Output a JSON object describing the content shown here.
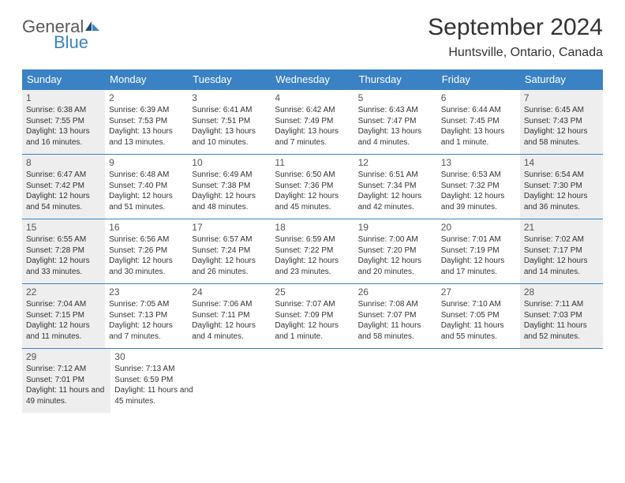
{
  "logo": {
    "line1": "General",
    "line2": "Blue"
  },
  "title": "September 2024",
  "location": "Huntsville, Ontario, Canada",
  "day_names": [
    "Sunday",
    "Monday",
    "Tuesday",
    "Wednesday",
    "Thursday",
    "Friday",
    "Saturday"
  ],
  "colors": {
    "header_bg": "#3b82c4",
    "header_text": "#ffffff",
    "shaded_cell": "#eeeeee",
    "border": "#3b82c4",
    "logo_gray": "#5a5a5a",
    "logo_blue": "#3b82c4"
  },
  "weeks": [
    [
      {
        "num": "1",
        "sunrise": "Sunrise: 6:38 AM",
        "sunset": "Sunset: 7:55 PM",
        "daylight": "Daylight: 13 hours and 16 minutes.",
        "shaded": true
      },
      {
        "num": "2",
        "sunrise": "Sunrise: 6:39 AM",
        "sunset": "Sunset: 7:53 PM",
        "daylight": "Daylight: 13 hours and 13 minutes.",
        "shaded": false
      },
      {
        "num": "3",
        "sunrise": "Sunrise: 6:41 AM",
        "sunset": "Sunset: 7:51 PM",
        "daylight": "Daylight: 13 hours and 10 minutes.",
        "shaded": false
      },
      {
        "num": "4",
        "sunrise": "Sunrise: 6:42 AM",
        "sunset": "Sunset: 7:49 PM",
        "daylight": "Daylight: 13 hours and 7 minutes.",
        "shaded": false
      },
      {
        "num": "5",
        "sunrise": "Sunrise: 6:43 AM",
        "sunset": "Sunset: 7:47 PM",
        "daylight": "Daylight: 13 hours and 4 minutes.",
        "shaded": false
      },
      {
        "num": "6",
        "sunrise": "Sunrise: 6:44 AM",
        "sunset": "Sunset: 7:45 PM",
        "daylight": "Daylight: 13 hours and 1 minute.",
        "shaded": false
      },
      {
        "num": "7",
        "sunrise": "Sunrise: 6:45 AM",
        "sunset": "Sunset: 7:43 PM",
        "daylight": "Daylight: 12 hours and 58 minutes.",
        "shaded": true
      }
    ],
    [
      {
        "num": "8",
        "sunrise": "Sunrise: 6:47 AM",
        "sunset": "Sunset: 7:42 PM",
        "daylight": "Daylight: 12 hours and 54 minutes.",
        "shaded": true
      },
      {
        "num": "9",
        "sunrise": "Sunrise: 6:48 AM",
        "sunset": "Sunset: 7:40 PM",
        "daylight": "Daylight: 12 hours and 51 minutes.",
        "shaded": false
      },
      {
        "num": "10",
        "sunrise": "Sunrise: 6:49 AM",
        "sunset": "Sunset: 7:38 PM",
        "daylight": "Daylight: 12 hours and 48 minutes.",
        "shaded": false
      },
      {
        "num": "11",
        "sunrise": "Sunrise: 6:50 AM",
        "sunset": "Sunset: 7:36 PM",
        "daylight": "Daylight: 12 hours and 45 minutes.",
        "shaded": false
      },
      {
        "num": "12",
        "sunrise": "Sunrise: 6:51 AM",
        "sunset": "Sunset: 7:34 PM",
        "daylight": "Daylight: 12 hours and 42 minutes.",
        "shaded": false
      },
      {
        "num": "13",
        "sunrise": "Sunrise: 6:53 AM",
        "sunset": "Sunset: 7:32 PM",
        "daylight": "Daylight: 12 hours and 39 minutes.",
        "shaded": false
      },
      {
        "num": "14",
        "sunrise": "Sunrise: 6:54 AM",
        "sunset": "Sunset: 7:30 PM",
        "daylight": "Daylight: 12 hours and 36 minutes.",
        "shaded": true
      }
    ],
    [
      {
        "num": "15",
        "sunrise": "Sunrise: 6:55 AM",
        "sunset": "Sunset: 7:28 PM",
        "daylight": "Daylight: 12 hours and 33 minutes.",
        "shaded": true
      },
      {
        "num": "16",
        "sunrise": "Sunrise: 6:56 AM",
        "sunset": "Sunset: 7:26 PM",
        "daylight": "Daylight: 12 hours and 30 minutes.",
        "shaded": false
      },
      {
        "num": "17",
        "sunrise": "Sunrise: 6:57 AM",
        "sunset": "Sunset: 7:24 PM",
        "daylight": "Daylight: 12 hours and 26 minutes.",
        "shaded": false
      },
      {
        "num": "18",
        "sunrise": "Sunrise: 6:59 AM",
        "sunset": "Sunset: 7:22 PM",
        "daylight": "Daylight: 12 hours and 23 minutes.",
        "shaded": false
      },
      {
        "num": "19",
        "sunrise": "Sunrise: 7:00 AM",
        "sunset": "Sunset: 7:20 PM",
        "daylight": "Daylight: 12 hours and 20 minutes.",
        "shaded": false
      },
      {
        "num": "20",
        "sunrise": "Sunrise: 7:01 AM",
        "sunset": "Sunset: 7:19 PM",
        "daylight": "Daylight: 12 hours and 17 minutes.",
        "shaded": false
      },
      {
        "num": "21",
        "sunrise": "Sunrise: 7:02 AM",
        "sunset": "Sunset: 7:17 PM",
        "daylight": "Daylight: 12 hours and 14 minutes.",
        "shaded": true
      }
    ],
    [
      {
        "num": "22",
        "sunrise": "Sunrise: 7:04 AM",
        "sunset": "Sunset: 7:15 PM",
        "daylight": "Daylight: 12 hours and 11 minutes.",
        "shaded": true
      },
      {
        "num": "23",
        "sunrise": "Sunrise: 7:05 AM",
        "sunset": "Sunset: 7:13 PM",
        "daylight": "Daylight: 12 hours and 7 minutes.",
        "shaded": false
      },
      {
        "num": "24",
        "sunrise": "Sunrise: 7:06 AM",
        "sunset": "Sunset: 7:11 PM",
        "daylight": "Daylight: 12 hours and 4 minutes.",
        "shaded": false
      },
      {
        "num": "25",
        "sunrise": "Sunrise: 7:07 AM",
        "sunset": "Sunset: 7:09 PM",
        "daylight": "Daylight: 12 hours and 1 minute.",
        "shaded": false
      },
      {
        "num": "26",
        "sunrise": "Sunrise: 7:08 AM",
        "sunset": "Sunset: 7:07 PM",
        "daylight": "Daylight: 11 hours and 58 minutes.",
        "shaded": false
      },
      {
        "num": "27",
        "sunrise": "Sunrise: 7:10 AM",
        "sunset": "Sunset: 7:05 PM",
        "daylight": "Daylight: 11 hours and 55 minutes.",
        "shaded": false
      },
      {
        "num": "28",
        "sunrise": "Sunrise: 7:11 AM",
        "sunset": "Sunset: 7:03 PM",
        "daylight": "Daylight: 11 hours and 52 minutes.",
        "shaded": true
      }
    ],
    [
      {
        "num": "29",
        "sunrise": "Sunrise: 7:12 AM",
        "sunset": "Sunset: 7:01 PM",
        "daylight": "Daylight: 11 hours and 49 minutes.",
        "shaded": true
      },
      {
        "num": "30",
        "sunrise": "Sunrise: 7:13 AM",
        "sunset": "Sunset: 6:59 PM",
        "daylight": "Daylight: 11 hours and 45 minutes.",
        "shaded": false
      },
      null,
      null,
      null,
      null,
      null
    ]
  ]
}
